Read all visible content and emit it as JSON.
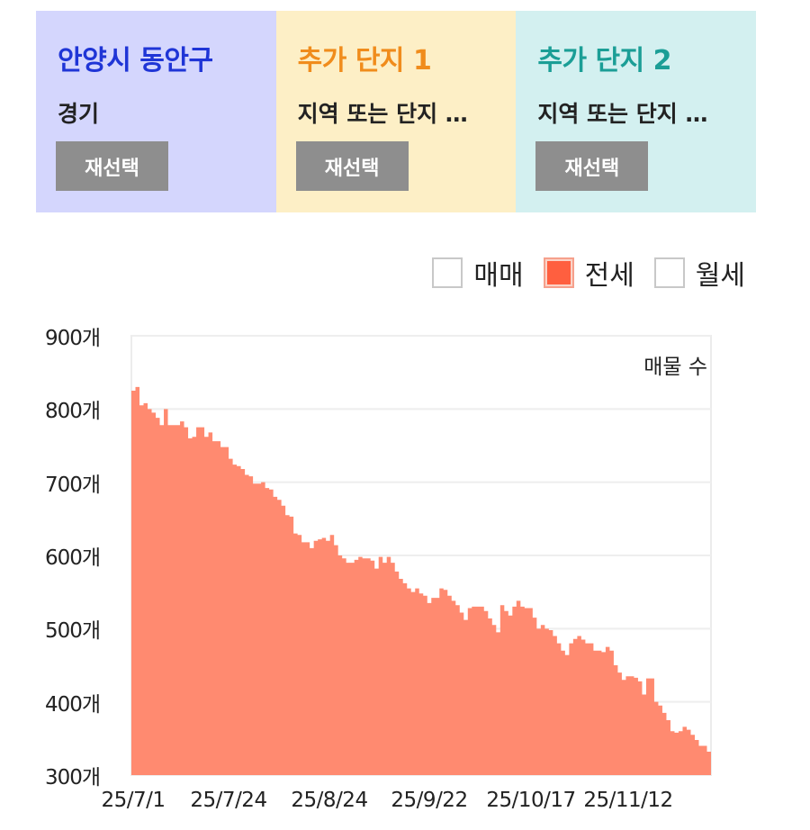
{
  "cards": [
    {
      "title": "안양시 동안구",
      "title_color": "#1f35d6",
      "bg": "#d4d6fd",
      "subtitle": "경기",
      "button": "재선택"
    },
    {
      "title": "추가 단지 1",
      "title_color": "#f08c1c",
      "bg": "#fdefc6",
      "subtitle": "지역 또는 단지 …",
      "button": "재선택"
    },
    {
      "title": "추가 단지 2",
      "title_color": "#1b9e96",
      "bg": "#d3f0f0",
      "subtitle": "지역 또는 단지 …",
      "button": "재선택"
    }
  ],
  "legend": [
    {
      "label": "매매",
      "checked": false
    },
    {
      "label": "전세",
      "checked": true
    },
    {
      "label": "월세",
      "checked": false
    }
  ],
  "chart_data": {
    "type": "area",
    "title": "",
    "series_label": "매물 수",
    "xlabel": "",
    "ylabel": "",
    "ylim": [
      300,
      900
    ],
    "y_ticks": [
      "900개",
      "800개",
      "700개",
      "600개",
      "500개",
      "400개",
      "300개"
    ],
    "y_tick_values": [
      900,
      800,
      700,
      600,
      500,
      400,
      300
    ],
    "x_ticks": [
      "25/7/1",
      "25/7/24",
      "25/8/24",
      "25/9/22",
      "25/10/17",
      "25/11/12"
    ],
    "grid": true,
    "legend_position": "top-right",
    "color": "#ff8a70",
    "series": [
      {
        "name": "전세",
        "values": [
          825,
          830,
          805,
          808,
          800,
          795,
          788,
          778,
          800,
          778,
          778,
          778,
          783,
          775,
          760,
          762,
          775,
          775,
          762,
          768,
          756,
          756,
          748,
          748,
          732,
          724,
          722,
          718,
          710,
          708,
          698,
          698,
          700,
          692,
          690,
          680,
          676,
          668,
          655,
          653,
          630,
          628,
          618,
          618,
          610,
          620,
          622,
          624,
          620,
          628,
          614,
          600,
          596,
          590,
          590,
          594,
          598,
          596,
          596,
          593,
          582,
          598,
          590,
          598,
          590,
          578,
          568,
          562,
          555,
          550,
          555,
          548,
          545,
          535,
          542,
          542,
          555,
          553,
          545,
          538,
          532,
          522,
          512,
          528,
          530,
          530,
          530,
          524,
          514,
          505,
          495,
          532,
          524,
          518,
          530,
          538,
          530,
          528,
          528,
          515,
          500,
          505,
          500,
          498,
          490,
          480,
          470,
          464,
          480,
          486,
          490,
          485,
          480,
          480,
          470,
          470,
          468,
          475,
          470,
          450,
          440,
          430,
          435,
          435,
          433,
          428,
          410,
          432,
          432,
          400,
          395,
          385,
          375,
          360,
          358,
          360,
          366,
          362,
          355,
          348,
          340,
          340,
          332
        ]
      }
    ]
  }
}
